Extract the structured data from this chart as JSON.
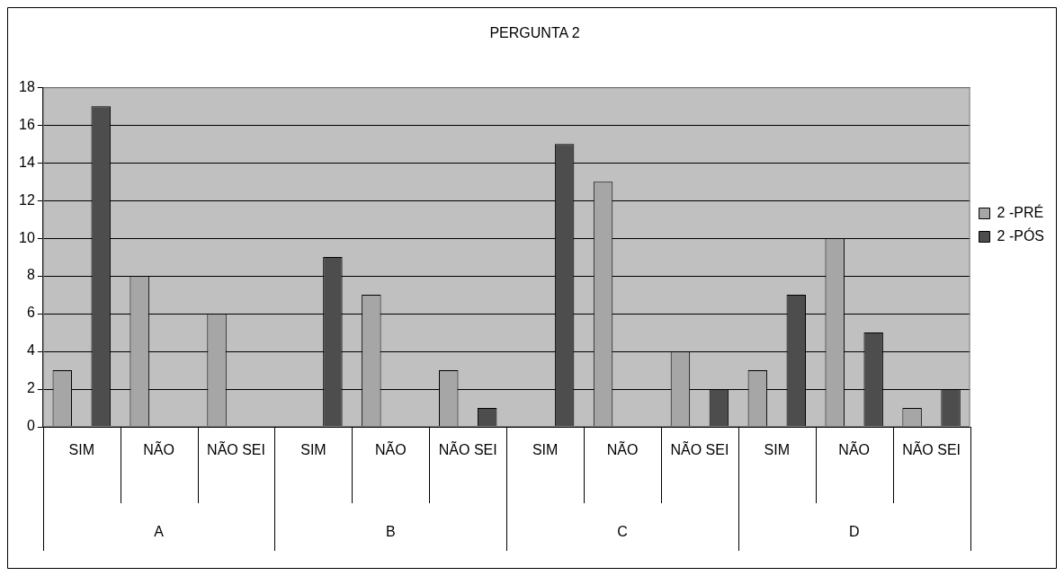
{
  "chart_data": {
    "type": "bar",
    "title": "PERGUNTA 2",
    "categories": [
      "SIM",
      "NÃO",
      "NÃO SEI",
      "SIM",
      "NÃO",
      "NÃO SEI",
      "SIM",
      "NÃO",
      "NÃO SEI",
      "SIM",
      "NÃO",
      "NÃO SEI"
    ],
    "annotations": [
      "A",
      "B",
      "C",
      "D"
    ],
    "series": [
      {
        "name": "2 -PRÉ",
        "color": "#a6a6a6",
        "values": [
          3,
          8,
          6,
          0,
          7,
          3,
          0,
          13,
          4,
          3,
          10,
          1
        ]
      },
      {
        "name": "2 -PÓS",
        "color": "#4d4d4d",
        "values": [
          17,
          0,
          0,
          9,
          0,
          1,
          15,
          0,
          2,
          7,
          5,
          2
        ]
      }
    ],
    "ylim": [
      0,
      18
    ],
    "yticks": [
      0,
      2,
      4,
      6,
      8,
      10,
      12,
      14,
      16,
      18
    ],
    "grid": "y",
    "legend": "right"
  }
}
